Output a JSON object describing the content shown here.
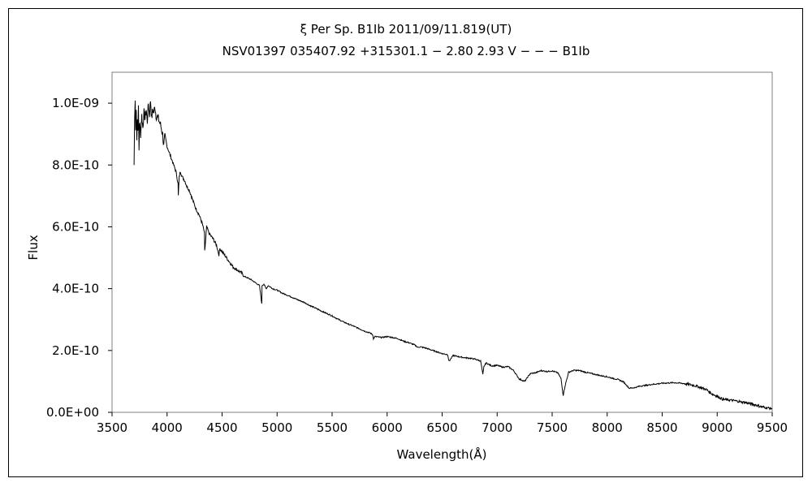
{
  "chart_data": {
    "type": "line",
    "title": "ξ Per   Sp. B1Ib   2011/09/11.819(UT)",
    "subtitle": "NSV01397 035407.92 +315301.1 − 2.80 2.93 V − − − B1Ib",
    "xlabel": "Wavelength(Å)",
    "ylabel": "Flux",
    "xlim": [
      3500,
      9500
    ],
    "ylim": [
      0,
      1.1e-09
    ],
    "x_ticks": [
      3500,
      4000,
      4500,
      5000,
      5500,
      6000,
      6500,
      7000,
      7500,
      8000,
      8500,
      9000,
      9500
    ],
    "x_tick_labels": [
      "3500",
      "4000",
      "4500",
      "5000",
      "5500",
      "6000",
      "6500",
      "7000",
      "7500",
      "8000",
      "8500",
      "9000",
      "9500"
    ],
    "y_ticks": [
      0,
      2e-10,
      4e-10,
      6e-10,
      8e-10,
      1e-09
    ],
    "y_tick_labels": [
      "0.0E+00",
      "2.0E-10",
      "4.0E-10",
      "6.0E-10",
      "8.0E-10",
      "1.0E-09"
    ],
    "grid": false,
    "legend": "none",
    "line_color": "#000000",
    "series": [
      {
        "x": [
          3700,
          3705,
          3710,
          3715,
          3720,
          3725,
          3730,
          3735,
          3740,
          3745,
          3750,
          3760,
          3770,
          3780,
          3790,
          3800,
          3810,
          3820,
          3830,
          3840,
          3850,
          3860,
          3870,
          3880,
          3890,
          3900,
          3920,
          3940,
          3960,
          3970,
          3980,
          4000,
          4020,
          4040,
          4060,
          4080,
          4100,
          4102,
          4110,
          4120,
          4140,
          4160,
          4180,
          4200,
          4230,
          4260,
          4290,
          4320,
          4340,
          4342,
          4360,
          4380,
          4400,
          4420,
          4450,
          4471,
          4480,
          4500,
          4540,
          4580,
          4600,
          4640,
          4680,
          4700,
          4760,
          4800,
          4840,
          4861,
          4863,
          4880,
          4900,
          4920,
          4960,
          5000,
          5050,
          5100,
          5150,
          5200,
          5250,
          5300,
          5350,
          5400,
          5450,
          5500,
          5550,
          5600,
          5650,
          5700,
          5750,
          5800,
          5850,
          5870,
          5876,
          5890,
          5950,
          6000,
          6050,
          6100,
          6150,
          6200,
          6250,
          6280,
          6300,
          6350,
          6400,
          6450,
          6500,
          6550,
          6563,
          6600,
          6650,
          6700,
          6750,
          6800,
          6850,
          6870,
          6880,
          6900,
          6950,
          7000,
          7050,
          7100,
          7150,
          7200,
          7250,
          7300,
          7350,
          7400,
          7450,
          7500,
          7550,
          7580,
          7600,
          7620,
          7650,
          7700,
          7750,
          7800,
          7850,
          7900,
          7950,
          8000,
          8050,
          8100,
          8150,
          8200,
          8250,
          8300,
          8350,
          8400,
          8450,
          8500,
          8550,
          8600,
          8650,
          8700,
          8750,
          8800,
          8850,
          8900,
          8950,
          9000,
          9050,
          9100,
          9150,
          9200,
          9250,
          9300,
          9350,
          9400,
          9450,
          9500
        ],
        "y": [
          8e-10,
          9.5e-10,
          1.02e-09,
          9.2e-10,
          9.8e-10,
          8.8e-10,
          9.6e-10,
          9e-10,
          9.9e-10,
          8.5e-10,
          9.4e-10,
          9e-10,
          9.6e-10,
          9.2e-10,
          9.7e-10,
          9.5e-10,
          9.8e-10,
          9.4e-10,
          1e-09,
          9.6e-10,
          1.01e-09,
          9.5e-10,
          9.8e-10,
          9.7e-10,
          9.9e-10,
          9.6e-10,
          9.5e-10,
          9.3e-10,
          9e-10,
          8.6e-10,
          8.9e-10,
          8.6e-10,
          8.4e-10,
          8.2e-10,
          8e-10,
          7.8e-10,
          7.4e-10,
          7e-10,
          7.6e-10,
          7.8e-10,
          7.6e-10,
          7.5e-10,
          7.3e-10,
          7.2e-10,
          6.9e-10,
          6.6e-10,
          6.4e-10,
          6.1e-10,
          5.8e-10,
          5.2e-10,
          6e-10,
          5.8e-10,
          5.7e-10,
          5.6e-10,
          5.4e-10,
          5.1e-10,
          5.3e-10,
          5.2e-10,
          5e-10,
          4.8e-10,
          4.7e-10,
          4.6e-10,
          4.5e-10,
          4.4e-10,
          4.3e-10,
          4.2e-10,
          4.1e-10,
          3.5e-10,
          4.1e-10,
          4.15e-10,
          4e-10,
          4.1e-10,
          4e-10,
          3.95e-10,
          3.85e-10,
          3.78e-10,
          3.7e-10,
          3.62e-10,
          3.55e-10,
          3.45e-10,
          3.37e-10,
          3.28e-10,
          3.2e-10,
          3.12e-10,
          3.02e-10,
          2.93e-10,
          2.85e-10,
          2.78e-10,
          2.7e-10,
          2.62e-10,
          2.56e-10,
          2.5e-10,
          2.38e-10,
          2.45e-10,
          2.42e-10,
          2.45e-10,
          2.42e-10,
          2.38e-10,
          2.3e-10,
          2.25e-10,
          2.18e-10,
          2.1e-10,
          2.12e-10,
          2.08e-10,
          2.02e-10,
          1.96e-10,
          1.9e-10,
          1.87e-10,
          1.65e-10,
          1.84e-10,
          1.8e-10,
          1.77e-10,
          1.75e-10,
          1.72e-10,
          1.66e-10,
          1.22e-10,
          1.48e-10,
          1.6e-10,
          1.5e-10,
          1.52e-10,
          1.46e-10,
          1.48e-10,
          1.35e-10,
          1.08e-10,
          1e-10,
          1.25e-10,
          1.28e-10,
          1.35e-10,
          1.32e-10,
          1.34e-10,
          1.28e-10,
          1.1e-10,
          5.5e-11,
          9e-11,
          1.3e-10,
          1.36e-10,
          1.35e-10,
          1.3e-10,
          1.26e-10,
          1.22e-10,
          1.18e-10,
          1.15e-10,
          1.1e-10,
          1.06e-10,
          9.8e-11,
          7.8e-11,
          8e-11,
          8.5e-11,
          8.7e-11,
          9e-11,
          9.2e-11,
          9.4e-11,
          9.5e-11,
          9.6e-11,
          9.5e-11,
          9.3e-11,
          9e-11,
          8.6e-11,
          8e-11,
          7.4e-11,
          6e-11,
          5.2e-11,
          4.2e-11,
          4e-11,
          3.8e-11,
          3.5e-11,
          3.2e-11,
          2.8e-11,
          2.4e-11,
          1.8e-11,
          1.5e-11,
          1.2e-11
        ]
      }
    ]
  }
}
